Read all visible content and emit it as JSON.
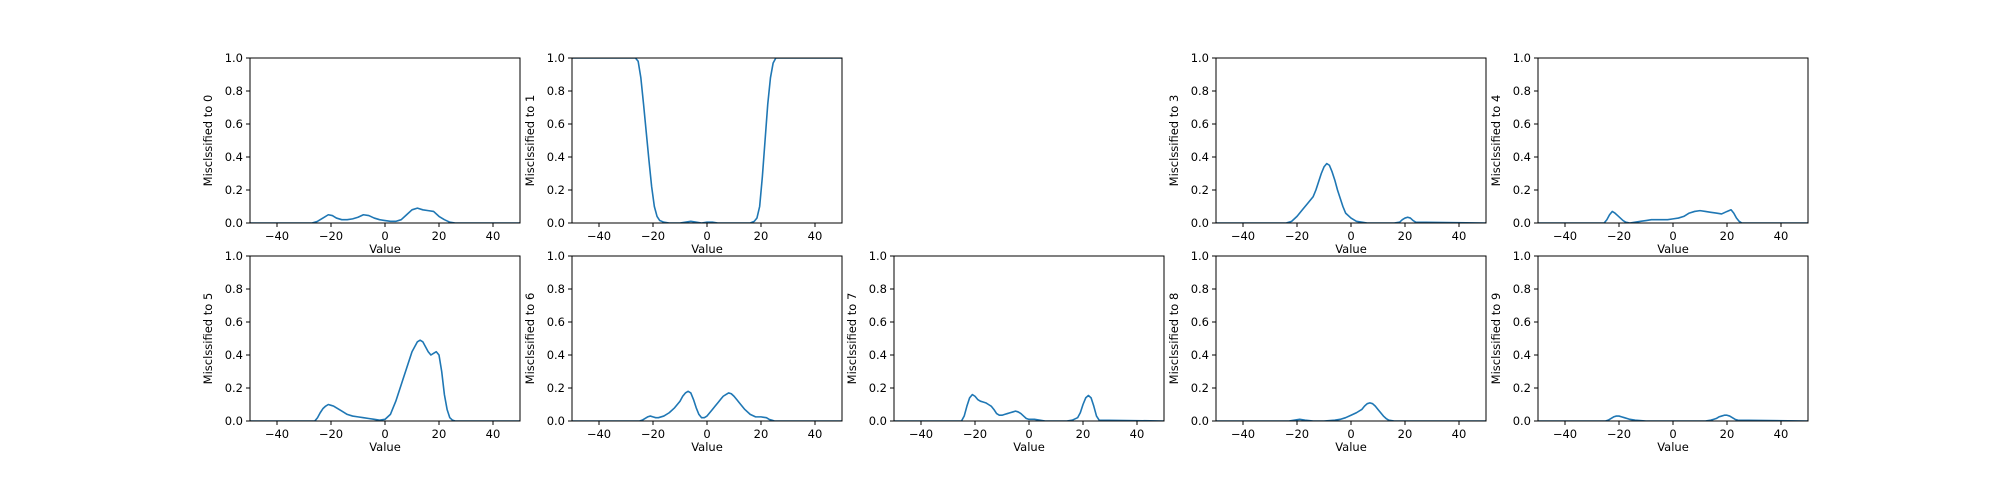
{
  "figure": {
    "x_tick_labels": [
      "−40",
      "−20",
      "0",
      "20",
      "40"
    ],
    "y_tick_labels": [
      "0.0",
      "0.2",
      "0.4",
      "0.6",
      "0.8",
      "1.0"
    ]
  },
  "colors": {
    "line": "#1f77b4",
    "axes": "#000000",
    "background": "#ffffff"
  },
  "chart_data": [
    {
      "type": "line",
      "panel": 0,
      "xlabel": "Value",
      "ylabel": "Misclssified to 0",
      "xlim": [
        -50,
        50
      ],
      "ylim": [
        0,
        1
      ],
      "x": [
        -50,
        -27,
        -25,
        -23,
        -21,
        -19.5,
        -18,
        -16,
        -14,
        -12,
        -10,
        -8,
        -6,
        -4,
        -2,
        0,
        2,
        4,
        6,
        8,
        10,
        12,
        14,
        16,
        18,
        20,
        22,
        24,
        26,
        50
      ],
      "y": [
        0,
        0,
        0.01,
        0.03,
        0.05,
        0.045,
        0.03,
        0.02,
        0.02,
        0.025,
        0.035,
        0.05,
        0.045,
        0.03,
        0.02,
        0.015,
        0.01,
        0.01,
        0.02,
        0.05,
        0.08,
        0.09,
        0.08,
        0.075,
        0.07,
        0.04,
        0.02,
        0.005,
        0,
        0
      ]
    },
    {
      "type": "line",
      "panel": 1,
      "xlabel": "Value",
      "ylabel": "Misclssified to 1",
      "xlim": [
        -50,
        50
      ],
      "ylim": [
        0,
        1
      ],
      "x": [
        -50,
        -26.5,
        -25.5,
        -24.5,
        -23.5,
        -22.5,
        -21.5,
        -20.5,
        -19.5,
        -18.5,
        -17.5,
        -16,
        -14,
        -12,
        -10,
        -8,
        -6,
        -4,
        -2,
        0,
        2,
        4,
        6,
        8,
        10,
        12,
        14,
        16,
        17.5,
        18.5,
        19.5,
        20.5,
        21.5,
        22.5,
        23.5,
        24.5,
        25.5,
        50
      ],
      "y": [
        1,
        1,
        0.98,
        0.88,
        0.72,
        0.55,
        0.38,
        0.22,
        0.1,
        0.04,
        0.015,
        0.005,
        0,
        0,
        0,
        0.005,
        0.01,
        0.005,
        0,
        0.005,
        0.005,
        0,
        0,
        0,
        0,
        0,
        0,
        0,
        0.01,
        0.03,
        0.1,
        0.28,
        0.5,
        0.72,
        0.88,
        0.97,
        1,
        1
      ]
    },
    {
      "type": "line",
      "panel": 3,
      "xlabel": "Value",
      "ylabel": "Misclssified to 3",
      "xlim": [
        -50,
        50
      ],
      "ylim": [
        0,
        1
      ],
      "x": [
        -50,
        -24,
        -22,
        -20,
        -18,
        -16,
        -14,
        -13,
        -12,
        -11,
        -10,
        -9,
        -8,
        -7,
        -6,
        -5,
        -4,
        -3,
        -2,
        0,
        2,
        4,
        6,
        8,
        10,
        12,
        14,
        16,
        18,
        19,
        20,
        21,
        22,
        23,
        24,
        50
      ],
      "y": [
        0,
        0,
        0.01,
        0.04,
        0.08,
        0.12,
        0.16,
        0.2,
        0.25,
        0.3,
        0.34,
        0.36,
        0.35,
        0.31,
        0.26,
        0.2,
        0.15,
        0.1,
        0.06,
        0.03,
        0.01,
        0.005,
        0,
        0,
        0,
        0,
        0,
        0,
        0.005,
        0.02,
        0.03,
        0.035,
        0.03,
        0.015,
        0.005,
        0
      ]
    },
    {
      "type": "line",
      "panel": 4,
      "xlabel": "Value",
      "ylabel": "Misclssified to 4",
      "xlim": [
        -50,
        50
      ],
      "ylim": [
        0,
        1
      ],
      "x": [
        -50,
        -25.5,
        -24.5,
        -23.5,
        -22.5,
        -21.5,
        -20.5,
        -19.5,
        -18.5,
        -17.5,
        -16,
        -14,
        -12,
        -10,
        -8,
        -6,
        -4,
        -2,
        0,
        2,
        4,
        6,
        8,
        10,
        12,
        14,
        16,
        18,
        20,
        21.5,
        22.5,
        23.5,
        24.5,
        25.5,
        50
      ],
      "y": [
        0,
        0,
        0.02,
        0.05,
        0.07,
        0.06,
        0.045,
        0.03,
        0.015,
        0.005,
        0,
        0.005,
        0.01,
        0.015,
        0.02,
        0.02,
        0.02,
        0.02,
        0.025,
        0.03,
        0.04,
        0.06,
        0.07,
        0.075,
        0.07,
        0.065,
        0.06,
        0.055,
        0.07,
        0.08,
        0.06,
        0.03,
        0.01,
        0,
        0
      ]
    },
    {
      "type": "line",
      "panel": 5,
      "xlabel": "Value",
      "ylabel": "Misclssified to 5",
      "xlim": [
        -50,
        50
      ],
      "ylim": [
        0,
        1
      ],
      "x": [
        -50,
        -26,
        -25,
        -24,
        -23,
        -22,
        -21,
        -20,
        -19,
        -18,
        -16,
        -14,
        -12,
        -10,
        -8,
        -6,
        -4,
        -2,
        0,
        2,
        4,
        6,
        8,
        10,
        12,
        13,
        14,
        15,
        16,
        17,
        18,
        19,
        20,
        21,
        22,
        23,
        24,
        25,
        26,
        50
      ],
      "y": [
        0,
        0,
        0.02,
        0.05,
        0.075,
        0.09,
        0.1,
        0.095,
        0.09,
        0.08,
        0.06,
        0.04,
        0.03,
        0.025,
        0.02,
        0.015,
        0.01,
        0.005,
        0.01,
        0.04,
        0.12,
        0.22,
        0.32,
        0.42,
        0.48,
        0.49,
        0.48,
        0.45,
        0.42,
        0.4,
        0.41,
        0.42,
        0.4,
        0.3,
        0.16,
        0.07,
        0.02,
        0.005,
        0,
        0
      ]
    },
    {
      "type": "line",
      "panel": 6,
      "xlabel": "Value",
      "ylabel": "Misclssified to 6",
      "xlim": [
        -50,
        50
      ],
      "ylim": [
        0,
        1
      ],
      "x": [
        -50,
        -25,
        -24,
        -23,
        -22,
        -21,
        -20,
        -19,
        -18,
        -16,
        -14,
        -12,
        -10,
        -9,
        -8,
        -7,
        -6,
        -5,
        -4,
        -3,
        -2,
        -1,
        0,
        1,
        2,
        3,
        4,
        5,
        6,
        7,
        8,
        9,
        10,
        11,
        12,
        14,
        16,
        18,
        20,
        22,
        23,
        24,
        25,
        50
      ],
      "y": [
        0,
        0,
        0.005,
        0.015,
        0.025,
        0.03,
        0.025,
        0.02,
        0.02,
        0.03,
        0.05,
        0.08,
        0.12,
        0.15,
        0.17,
        0.18,
        0.17,
        0.13,
        0.08,
        0.04,
        0.02,
        0.02,
        0.03,
        0.05,
        0.07,
        0.09,
        0.11,
        0.13,
        0.15,
        0.16,
        0.17,
        0.165,
        0.15,
        0.13,
        0.11,
        0.07,
        0.04,
        0.025,
        0.025,
        0.02,
        0.01,
        0.005,
        0,
        0
      ]
    },
    {
      "type": "line",
      "panel": 7,
      "xlabel": "Value",
      "ylabel": "Misclssified to 7",
      "xlim": [
        -50,
        50
      ],
      "ylim": [
        0,
        1
      ],
      "x": [
        -50,
        -25,
        -24,
        -23,
        -22,
        -21,
        -20,
        -19,
        -18,
        -17,
        -16,
        -15,
        -14,
        -13,
        -12,
        -11,
        -10,
        -9,
        -8,
        -7,
        -6,
        -5,
        -4,
        -3,
        -2,
        -1,
        0,
        2,
        4,
        6,
        8,
        10,
        12,
        14,
        16,
        18,
        19,
        20,
        21,
        22,
        23,
        24,
        25,
        26,
        50
      ],
      "y": [
        0,
        0,
        0.03,
        0.09,
        0.14,
        0.16,
        0.15,
        0.13,
        0.12,
        0.115,
        0.11,
        0.1,
        0.09,
        0.07,
        0.045,
        0.035,
        0.035,
        0.04,
        0.045,
        0.05,
        0.055,
        0.06,
        0.055,
        0.045,
        0.03,
        0.015,
        0.01,
        0.01,
        0.005,
        0,
        0,
        0,
        0,
        0,
        0.005,
        0.02,
        0.05,
        0.1,
        0.14,
        0.155,
        0.14,
        0.09,
        0.03,
        0.005,
        0
      ]
    },
    {
      "type": "line",
      "panel": 8,
      "xlabel": "Value",
      "ylabel": "Misclssified to 8",
      "xlim": [
        -50,
        50
      ],
      "ylim": [
        0,
        1
      ],
      "x": [
        -50,
        -23,
        -21,
        -19,
        -17,
        -14,
        -10,
        -6,
        -4,
        -2,
        0,
        2,
        4,
        5,
        6,
        7,
        8,
        9,
        10,
        11,
        12,
        13,
        14,
        16,
        50
      ],
      "y": [
        0,
        0,
        0.005,
        0.01,
        0.005,
        0,
        0,
        0.005,
        0.01,
        0.02,
        0.035,
        0.05,
        0.07,
        0.09,
        0.105,
        0.11,
        0.105,
        0.09,
        0.07,
        0.05,
        0.03,
        0.015,
        0.005,
        0,
        0
      ]
    },
    {
      "type": "line",
      "panel": 9,
      "xlabel": "Value",
      "ylabel": "Misclssified to 9",
      "xlim": [
        -50,
        50
      ],
      "ylim": [
        0,
        1
      ],
      "x": [
        -50,
        -25,
        -24,
        -23,
        -22,
        -21,
        -20,
        -19,
        -18,
        -17,
        -16,
        -14,
        -10,
        -6,
        -2,
        0,
        2,
        4,
        8,
        12,
        14,
        15,
        16,
        17,
        18,
        19,
        20,
        21,
        22,
        23,
        24,
        50
      ],
      "y": [
        0,
        0,
        0.005,
        0.015,
        0.025,
        0.03,
        0.03,
        0.025,
        0.02,
        0.015,
        0.01,
        0.005,
        0,
        0,
        0,
        0,
        0,
        0,
        0,
        0,
        0.005,
        0.01,
        0.015,
        0.025,
        0.03,
        0.035,
        0.035,
        0.03,
        0.02,
        0.01,
        0.005,
        0
      ]
    }
  ]
}
